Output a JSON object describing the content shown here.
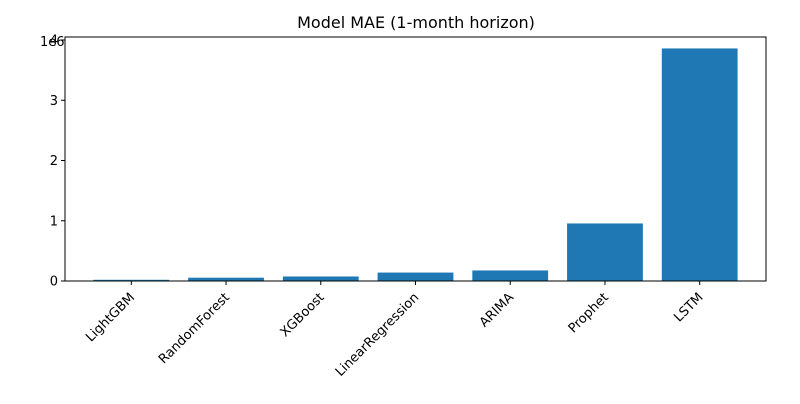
{
  "chart_data": {
    "type": "bar",
    "title": "Model MAE (1-month horizon)",
    "xlabel": "",
    "ylabel": "",
    "scale_label": "1e6",
    "categories": [
      "LightGBM",
      "RandomForest",
      "XGBoost",
      "LinearRegression",
      "ARIMA",
      "Prophet",
      "LSTM"
    ],
    "values": [
      20000,
      55000,
      75000,
      140000,
      175000,
      955000,
      3860000
    ],
    "ylim": [
      0,
      4050000
    ],
    "yticks": [
      0,
      1000000,
      2000000,
      3000000,
      4000000
    ],
    "ytick_labels": [
      "0",
      "1",
      "2",
      "3",
      "4"
    ],
    "bar_color": "#1f77b4",
    "grid": false,
    "legend": "none"
  }
}
